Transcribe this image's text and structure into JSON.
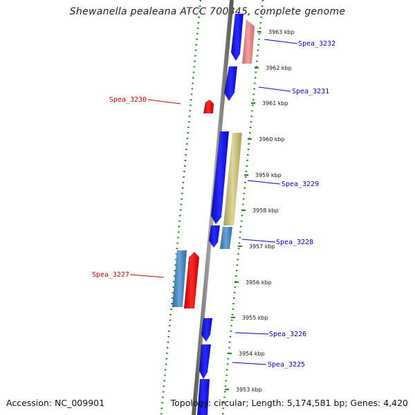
{
  "title": "Shewanella pealeana ATCC 700345, complete genome",
  "footer": {
    "accession": "Accession: NC_009901",
    "summary": "Topology: circular; Length: 5,174,581 bp; Genes: 4,420"
  },
  "colors": {
    "backbone": "#8a8a8a",
    "dots": "#1a8a1a",
    "gene_blue": "#1010f0",
    "gene_red": "#ee1111",
    "gene_pink": "#e88888",
    "gene_tan": "#c8c07a",
    "gene_steel": "#4a88c0",
    "label_blue": "#0000cc",
    "label_red": "#cc0000"
  },
  "kbp_ticks": [
    "3963 kbp",
    "3962 kbp",
    "3961 kbp",
    "3960 kbp",
    "3959 kbp",
    "3958 kbp",
    "3957 kbp",
    "3956 kbp",
    "3955 kbp",
    "3954 kbp",
    "3953 kbp"
  ],
  "gene_labels": [
    {
      "name": "Spea_3232",
      "side": "right"
    },
    {
      "name": "Spea_3231",
      "side": "right"
    },
    {
      "name": "Spea_3230",
      "side": "left"
    },
    {
      "name": "Spea_3229",
      "side": "right"
    },
    {
      "name": "Spea_3228",
      "side": "right"
    },
    {
      "name": "Spea_3227",
      "side": "left"
    },
    {
      "name": "Spea_3226",
      "side": "right"
    },
    {
      "name": "Spea_3225",
      "side": "right"
    }
  ]
}
